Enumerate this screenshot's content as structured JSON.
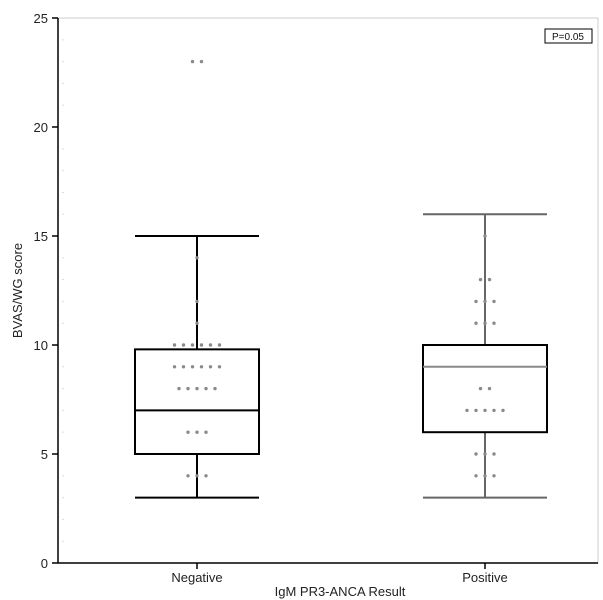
{
  "chart_data": {
    "type": "box",
    "title": "",
    "xlabel": "IgM PR3-ANCA Result",
    "ylabel": "BVAS/WG score",
    "ylim": [
      0,
      25
    ],
    "yticks": [
      0,
      5,
      10,
      15,
      20,
      25
    ],
    "grid": false,
    "annotation": "P=0.05",
    "categories": [
      "Negative",
      "Positive"
    ],
    "boxes": [
      {
        "name": "Negative",
        "whisker_low": 3,
        "q1": 5,
        "median": 7,
        "q3": 9.8,
        "whisker_high": 15,
        "box_color": "#000000",
        "median_color": "#000000",
        "whisker_color": "#000000",
        "points": [
          {
            "y": 23,
            "n": 2
          },
          {
            "y": 14,
            "n": 1
          },
          {
            "y": 12,
            "n": 1
          },
          {
            "y": 11,
            "n": 1
          },
          {
            "y": 10,
            "n": 6
          },
          {
            "y": 9,
            "n": 6
          },
          {
            "y": 8,
            "n": 5
          },
          {
            "y": 6,
            "n": 3
          },
          {
            "y": 4,
            "n": 3
          }
        ]
      },
      {
        "name": "Positive",
        "whisker_low": 3,
        "q1": 6,
        "median": 9,
        "q3": 10,
        "whisker_high": 16,
        "box_color": "#000000",
        "median_color": "#888888",
        "whisker_color": "#666666",
        "points": [
          {
            "y": 15,
            "n": 1
          },
          {
            "y": 13,
            "n": 2
          },
          {
            "y": 12,
            "n": 3
          },
          {
            "y": 11,
            "n": 3
          },
          {
            "y": 8,
            "n": 2
          },
          {
            "y": 7,
            "n": 5
          },
          {
            "y": 5,
            "n": 3
          },
          {
            "y": 4,
            "n": 3
          }
        ]
      }
    ]
  }
}
